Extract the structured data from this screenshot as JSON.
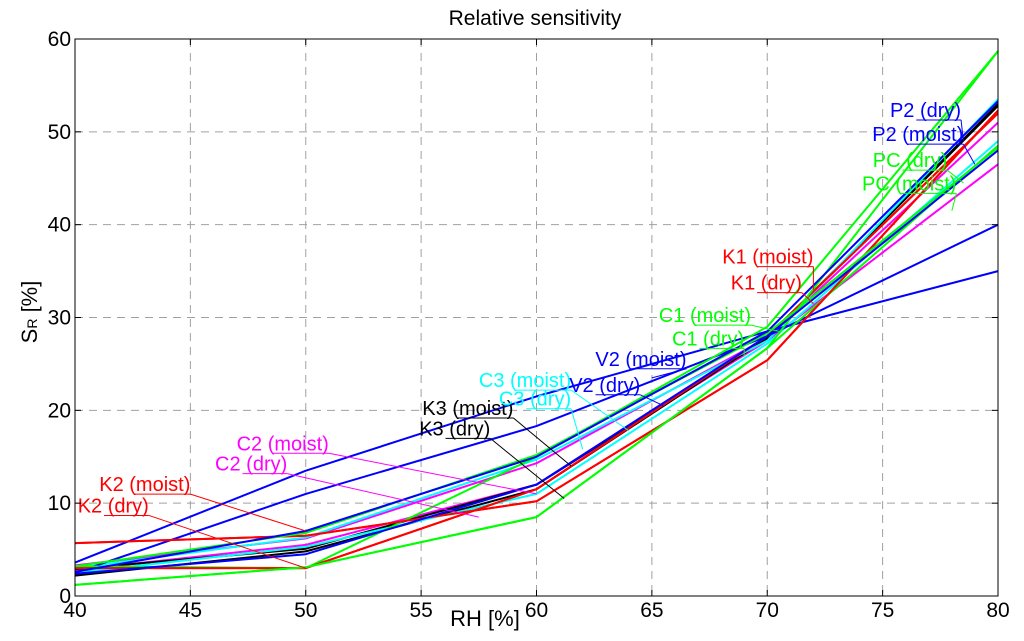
{
  "chart_data": {
    "type": "line",
    "title": "Relative sensitivity",
    "xlabel": "RH [%]",
    "ylabel": "SR [%]",
    "ylabel_main": "S",
    "ylabel_sub": "R",
    "ylabel_unit": " [%]",
    "xlim": [
      40,
      80
    ],
    "ylim": [
      0,
      60
    ],
    "xticks": [
      40,
      45,
      50,
      55,
      60,
      65,
      70,
      75,
      80
    ],
    "yticks": [
      0,
      10,
      20,
      30,
      40,
      50,
      60
    ],
    "x": [
      40,
      50,
      60,
      70,
      80
    ],
    "grid": true,
    "series": [
      {
        "name": "K2 (dry)",
        "color": "#ff0000",
        "values": [
          3.0,
          3.0,
          11.5,
          28.0,
          52.0
        ]
      },
      {
        "name": "K2 (moist)",
        "color": "#ff0000",
        "values": [
          5.7,
          6.5,
          10.2,
          25.4,
          52.3
        ]
      },
      {
        "name": "C2 (dry)",
        "color": "#ff00ff",
        "values": [
          2.8,
          5.5,
          12.0,
          27.5,
          46.5
        ]
      },
      {
        "name": "C2 (moist)",
        "color": "#ff00ff",
        "values": [
          3.3,
          6.2,
          14.3,
          27.8,
          51.0
        ]
      },
      {
        "name": "K3 (dry)",
        "color": "#000000",
        "values": [
          2.2,
          4.8,
          11.5,
          27.8,
          52.8
        ]
      },
      {
        "name": "K3 (moist)",
        "color": "#000000",
        "values": [
          2.9,
          5.1,
          12.0,
          27.7,
          53.0
        ]
      },
      {
        "name": "C3 (dry)",
        "color": "#00ffff",
        "values": [
          2.5,
          5.3,
          11.0,
          27.2,
          49.0
        ]
      },
      {
        "name": "C3 (moist)",
        "color": "#00ffff",
        "values": [
          3.0,
          6.3,
          14.7,
          27.5,
          53.5
        ]
      },
      {
        "name": "V2 (dry)",
        "color": "#0000ff",
        "values": [
          2.5,
          11.0,
          18.3,
          28.0,
          40.0
        ]
      },
      {
        "name": "V2 (moist)",
        "color": "#0000ff",
        "values": [
          3.6,
          13.5,
          21.5,
          28.5,
          35.0
        ]
      },
      {
        "name": "C1 (dry)",
        "color": "#00ff00",
        "values": [
          1.2,
          3.1,
          8.5,
          26.7,
          48.5
        ]
      },
      {
        "name": "C1 (moist)",
        "color": "#00ff00",
        "values": [
          3.2,
          3.0,
          15.0,
          29.0,
          58.7
        ]
      },
      {
        "name": "K1 (dry)",
        "color": "#ff0000",
        "values": [
          5.7,
          6.5,
          10.2,
          25.4,
          52.3
        ]
      },
      {
        "name": "K1 (moist)",
        "color": "#ff0000",
        "values": [
          3.0,
          3.0,
          11.5,
          28.0,
          52.0
        ]
      },
      {
        "name": "PC (moist)",
        "color": "#00ff00",
        "values": [
          3.2,
          6.8,
          15.2,
          28.3,
          48.3
        ]
      },
      {
        "name": "PC (dry)",
        "color": "#00ff00",
        "values": [
          1.2,
          3.1,
          8.5,
          26.7,
          58.7
        ]
      },
      {
        "name": "P2 (moist)",
        "color": "#0000ff",
        "values": [
          2.4,
          4.5,
          12.0,
          28.0,
          48.0
        ]
      },
      {
        "name": "P2 (dry)",
        "color": "#0000ff",
        "values": [
          2.6,
          7.0,
          15.0,
          28.5,
          53.3
        ]
      }
    ],
    "annotations": [
      {
        "text": "K2 (dry)",
        "color": "#ff0000",
        "label_x": 43.2,
        "label_y": 9.0,
        "target_x": 50,
        "target_y": 3.0
      },
      {
        "text": "K2 (moist)",
        "color": "#ff0000",
        "label_x": 45.0,
        "label_y": 11.3,
        "target_x": 50,
        "target_y": 7.0
      },
      {
        "text": "C2 (dry)",
        "color": "#ff00ff",
        "label_x": 49.2,
        "label_y": 13.5,
        "target_x": 57.5,
        "target_y": 8.5
      },
      {
        "text": "C2 (moist)",
        "color": "#ff00ff",
        "label_x": 51.0,
        "label_y": 15.7,
        "target_x": 60.0,
        "target_y": 11.0
      },
      {
        "text": "K3 (dry)",
        "color": "#000000",
        "label_x": 58.0,
        "label_y": 17.3,
        "target_x": 61.2,
        "target_y": 10.5
      },
      {
        "text": "K3 (moist)",
        "color": "#000000",
        "label_x": 59.0,
        "label_y": 19.5,
        "target_x": 61.5,
        "target_y": 14.0
      },
      {
        "text": "C3 (dry)",
        "color": "#00ffff",
        "label_x": 61.5,
        "label_y": 20.5,
        "target_x": 62.0,
        "target_y": 15.8
      },
      {
        "text": "C3 (moist)",
        "color": "#00ffff",
        "label_x": 61.5,
        "label_y": 22.5,
        "target_x": 64.0,
        "target_y": 17.8
      },
      {
        "text": "V2 (dry)",
        "color": "#0000ff",
        "label_x": 64.5,
        "label_y": 22.0,
        "target_x": 65.5,
        "target_y": 20.5
      },
      {
        "text": "V2 (moist)",
        "color": "#0000ff",
        "label_x": 66.5,
        "label_y": 24.8,
        "target_x": 65.0,
        "target_y": 23.5
      },
      {
        "text": "C1 (dry)",
        "color": "#00ff00",
        "label_x": 69.0,
        "label_y": 27.0,
        "target_x": 69.0,
        "target_y": 25.8
      },
      {
        "text": "C1 (moist)",
        "color": "#00ff00",
        "label_x": 69.3,
        "label_y": 29.5,
        "target_x": 70.5,
        "target_y": 28.5
      },
      {
        "text": "K1 (dry)",
        "color": "#ff0000",
        "label_x": 71.5,
        "label_y": 33.0,
        "target_x": 72.0,
        "target_y": 31.5
      },
      {
        "text": "K1 (moist)",
        "color": "#ff0000",
        "label_x": 72.0,
        "label_y": 35.8,
        "target_x": 72.0,
        "target_y": 33.0
      },
      {
        "text": "PC (moist)",
        "color": "#00ff00",
        "label_x": 78.2,
        "label_y": 43.7,
        "target_x": 78.0,
        "target_y": 41.5
      },
      {
        "text": "PC (dry)",
        "color": "#00ff00",
        "label_x": 77.8,
        "label_y": 46.2,
        "target_x": 78.5,
        "target_y": 44.5
      },
      {
        "text": "P2 (moist)",
        "color": "#0000ff",
        "label_x": 78.5,
        "label_y": 49.0,
        "target_x": 79.0,
        "target_y": 46.5
      },
      {
        "text": "P2 (dry)",
        "color": "#0000ff",
        "label_x": 78.4,
        "label_y": 51.6,
        "target_x": 78.5,
        "target_y": 49.0
      }
    ]
  }
}
